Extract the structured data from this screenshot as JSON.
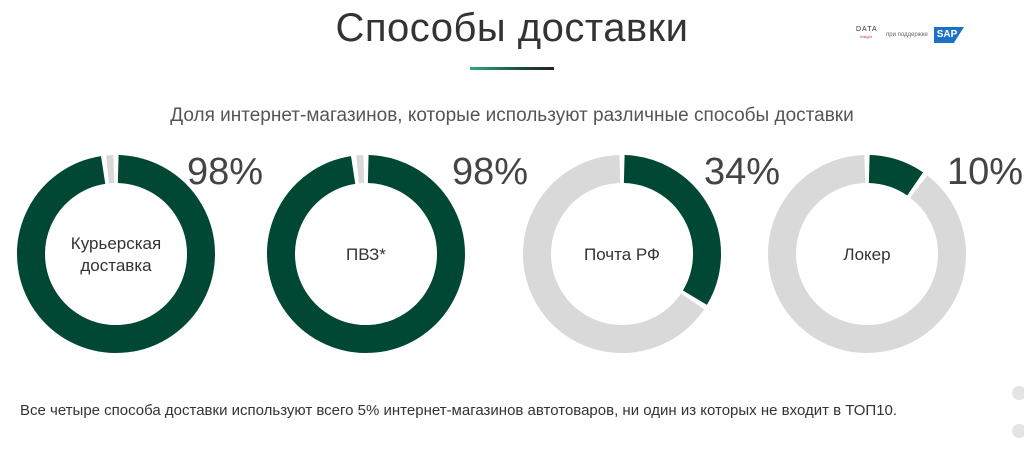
{
  "header": {
    "title": "Способы доставки",
    "logo_data": "DATA",
    "logo_insight": "insight",
    "with_support": "при поддержке",
    "logo_sap": "SAP"
  },
  "subtitle": "Доля интернет-магазинов, которые используют различные способы доставки",
  "chart_data": {
    "type": "pie",
    "subtype": "donut",
    "categories": [
      "Курьерская доставка",
      "ПВЗ*",
      "Почта РФ",
      "Локер"
    ],
    "category_lines": [
      [
        "Курьерская",
        "доставка"
      ],
      [
        "ПВЗ*"
      ],
      [
        "Почта РФ"
      ],
      [
        "Локер"
      ]
    ],
    "values": [
      98,
      98,
      34,
      10
    ],
    "value_labels": [
      "98%",
      "98%",
      "34%",
      "10%"
    ],
    "unit": "%",
    "colors": {
      "filled": "#004833",
      "remaining": "#d9d9d9"
    }
  },
  "footnote": "Все четыре способа доставки используют всего 5% интернет-магазинов автотоваров, ни один из которых не входит в ТОП10."
}
